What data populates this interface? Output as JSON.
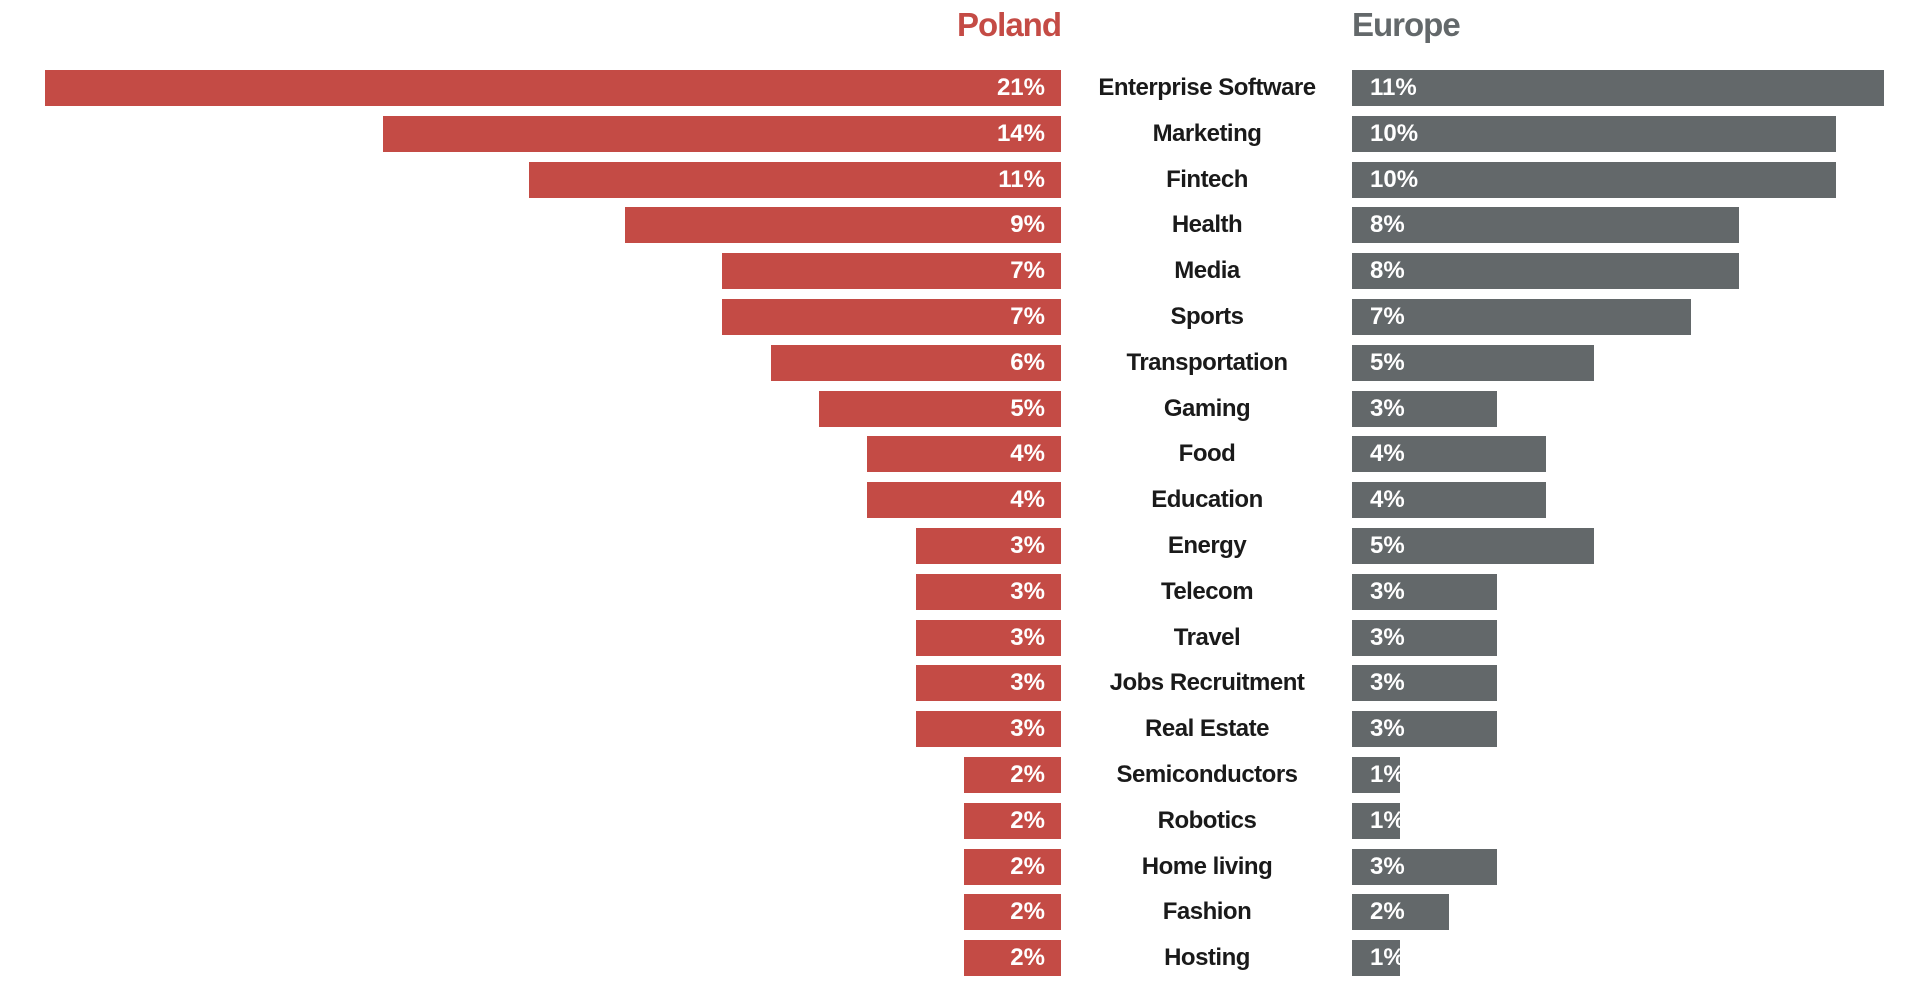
{
  "chart_data": {
    "type": "bar",
    "orientation": "horizontal-butterfly",
    "categories": [
      "Enterprise Software",
      "Marketing",
      "Fintech",
      "Health",
      "Media",
      "Sports",
      "Transportation",
      "Gaming",
      "Food",
      "Education",
      "Energy",
      "Telecom",
      "Travel",
      "Jobs Recruitment",
      "Real Estate",
      "Semiconductors",
      "Robotics",
      "Home living",
      "Fashion",
      "Hosting"
    ],
    "series": [
      {
        "name": "Poland",
        "color": "#c44b45",
        "values": [
          21,
          14,
          11,
          9,
          7,
          7,
          6,
          5,
          4,
          4,
          3,
          3,
          3,
          3,
          3,
          2,
          2,
          2,
          2,
          2
        ]
      },
      {
        "name": "Europe",
        "color": "#63686a",
        "values": [
          11,
          10,
          10,
          8,
          8,
          7,
          5,
          3,
          4,
          4,
          5,
          3,
          3,
          3,
          3,
          1,
          1,
          3,
          2,
          1
        ]
      }
    ],
    "unit": "%",
    "grid": false
  }
}
